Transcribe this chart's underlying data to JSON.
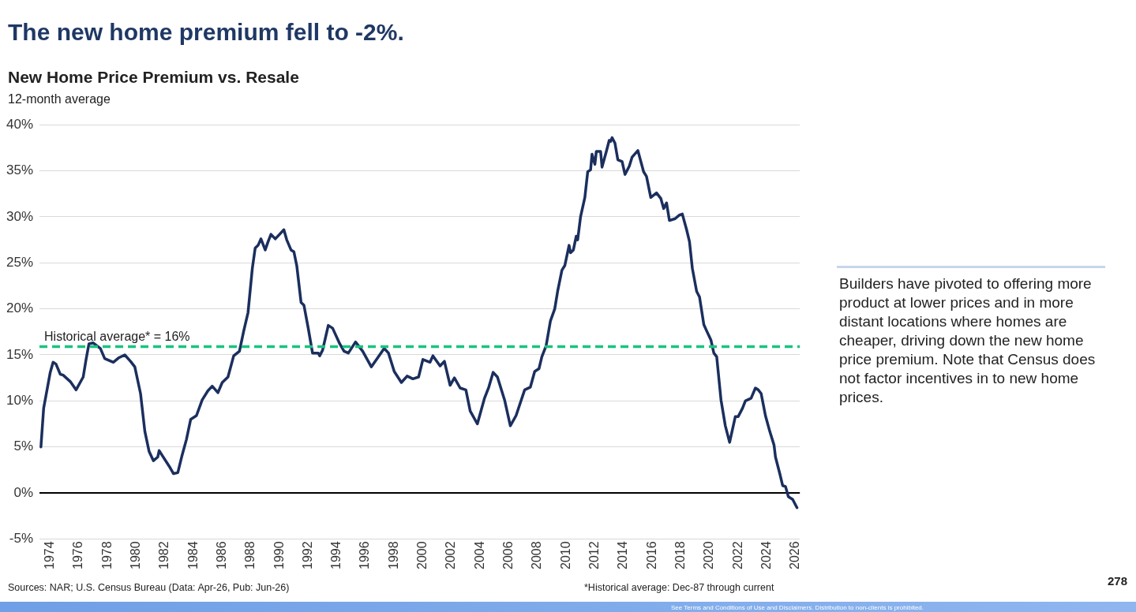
{
  "chart_data": {
    "type": "line",
    "title": "New Home Price Premium vs. Resale",
    "subtitle": "12-month average",
    "annotations": [
      "The new home premium fell to -2%.",
      "Builders have pivoted to offering more product at lower prices and in more distant locations where homes are cheaper, driving down the new home price premium. Note that Census does not factor incentives in to new home prices.",
      "Sources: NAR; U.S. Census Bureau (Data: Apr-26, Pub: Jun-26)",
      "*Historical average: Dec-87 through current",
      "See Terms and Conditions of Use and Disclaimers. Distribution to non-clients is prohibited.",
      "278"
    ],
    "series": [
      {
        "color": "#1b2f5e",
        "x": [
          1973.35,
          1973.54,
          1974.0,
          1974.2,
          1974.4,
          1974.7,
          1974.9,
          1975.4,
          1975.8,
          1976.3,
          1976.5,
          1976.7,
          1977.0,
          1977.5,
          1977.8,
          1978.4,
          1978.8,
          1979.2,
          1979.6,
          1979.9,
          1980.3,
          1980.6,
          1980.9,
          1981.2,
          1981.5,
          1981.6,
          1981.8,
          1982.3,
          1982.6,
          1982.9,
          1983.2,
          1983.5,
          1983.8,
          1984.2,
          1984.6,
          1985.0,
          1985.3,
          1985.7,
          1986.0,
          1986.4,
          1986.8,
          1987.2,
          1987.5,
          1987.8,
          1988.1,
          1988.3,
          1988.5,
          1988.7,
          1989.0,
          1989.2,
          1989.4,
          1989.7,
          1990.0,
          1990.3,
          1990.5,
          1990.8,
          1991.0,
          1991.2,
          1991.5,
          1991.7,
          1992.0,
          1992.3,
          1992.7,
          1992.8,
          1993.0,
          1993.4,
          1993.7,
          1994.2,
          1994.5,
          1994.8,
          1995.3,
          1995.8,
          1996.4,
          1996.9,
          1997.3,
          1997.6,
          1998.0,
          1998.5,
          1998.9,
          1999.3,
          1999.7,
          2000.0,
          2000.5,
          2000.7,
          2001.2,
          2001.5,
          2001.9,
          2002.2,
          2002.6,
          2003.0,
          2003.3,
          2003.8,
          2004.3,
          2004.6,
          2004.9,
          2005.2,
          2005.7,
          2006.0,
          2006.1,
          2006.5,
          2007.1,
          2007.5,
          2007.8,
          2008.1,
          2008.3,
          2008.6,
          2008.9,
          2009.2,
          2009.4,
          2009.7,
          2009.9,
          2010.2,
          2010.3,
          2010.5,
          2010.7,
          2010.8,
          2011.0,
          2011.3,
          2011.5,
          2011.7,
          2011.8,
          2012.0,
          2012.1,
          2012.4,
          2012.5,
          2012.8,
          2013.0,
          2013.1,
          2013.2,
          2013.4,
          2013.6,
          2013.9,
          2014.1,
          2014.4,
          2014.6,
          2015.0,
          2015.4,
          2015.6,
          2015.9,
          2016.3,
          2016.6,
          2016.8,
          2017.0,
          2017.2,
          2017.6,
          2017.9,
          2018.1,
          2018.4,
          2018.6,
          2018.8,
          2019.1,
          2019.3,
          2019.6,
          2019.8,
          2020.1,
          2020.3,
          2020.5,
          2020.8,
          2021.1,
          2021.4,
          2021.8,
          2022.0,
          2022.3,
          2022.5,
          2022.9,
          2023.2,
          2023.4,
          2023.6,
          2023.9,
          2024.2,
          2024.5,
          2024.6,
          2024.9,
          2025.1,
          2025.3,
          2025.5,
          2025.8,
          2026.1
        ],
        "values": [
          5.0,
          9.2,
          13.1,
          14.2,
          14.0,
          12.9,
          12.8,
          12.1,
          11.2,
          12.6,
          14.5,
          16.2,
          16.3,
          15.7,
          14.6,
          14.2,
          14.7,
          15.0,
          14.3,
          13.7,
          10.8,
          6.7,
          4.5,
          3.5,
          3.9,
          4.6,
          4.1,
          2.9,
          2.1,
          2.2,
          4.1,
          5.8,
          8.0,
          8.4,
          10.1,
          11.1,
          11.6,
          10.9,
          12.0,
          12.6,
          14.9,
          15.4,
          17.6,
          19.6,
          24.4,
          26.6,
          26.9,
          27.6,
          26.4,
          27.3,
          28.1,
          27.6,
          28.1,
          28.6,
          27.5,
          26.4,
          26.2,
          24.7,
          20.7,
          20.4,
          17.9,
          15.2,
          15.2,
          14.9,
          15.5,
          18.2,
          17.9,
          16.2,
          15.4,
          15.2,
          16.4,
          15.4,
          13.7,
          14.8,
          15.7,
          15.2,
          13.2,
          12.0,
          12.7,
          12.4,
          12.6,
          14.5,
          14.2,
          14.9,
          13.8,
          14.3,
          11.7,
          12.5,
          11.4,
          11.2,
          8.9,
          7.5,
          10.3,
          11.5,
          13.1,
          12.6,
          10.1,
          8.0,
          7.3,
          8.4,
          11.2,
          11.5,
          13.2,
          13.5,
          14.8,
          16.0,
          18.7,
          20.0,
          21.9,
          24.2,
          24.7,
          26.9,
          26.1,
          26.4,
          27.9,
          27.5,
          30.0,
          32.1,
          34.9,
          35.1,
          36.8,
          35.7,
          37.1,
          37.1,
          35.4,
          37.1,
          38.3,
          38.2,
          38.6,
          38.0,
          36.2,
          36.0,
          34.6,
          35.5,
          36.5,
          37.2,
          34.9,
          34.4,
          32.1,
          32.6,
          32.0,
          30.9,
          31.5,
          29.6,
          29.8,
          30.2,
          30.3,
          28.6,
          27.3,
          24.4,
          21.9,
          21.3,
          18.3,
          17.6,
          16.6,
          15.2,
          14.8,
          10.1,
          7.3,
          5.5,
          8.3,
          8.3,
          9.2,
          10.0,
          10.3,
          11.4,
          11.2,
          10.8,
          8.4,
          6.7,
          5.2,
          3.9,
          2.1,
          0.8,
          0.7,
          -0.4,
          -0.7,
          -1.6
        ]
      }
    ],
    "xlim": [
      1973.25,
      2026.3
    ],
    "xticks": [
      1974,
      1976,
      1978,
      1980,
      1982,
      1984,
      1986,
      1988,
      1990,
      1992,
      1994,
      1996,
      1998,
      2000,
      2002,
      2004,
      2006,
      2008,
      2010,
      2012,
      2014,
      2016,
      2018,
      2020,
      2022,
      2024,
      2026
    ],
    "ylim": [
      -5,
      40
    ],
    "yticks": [
      {
        "value": -5,
        "label": "-5%"
      },
      {
        "value": 0,
        "label": "0%"
      },
      {
        "value": 5,
        "label": "5%"
      },
      {
        "value": 10,
        "label": "10%"
      },
      {
        "value": 15,
        "label": "15%"
      },
      {
        "value": 20,
        "label": "20%"
      },
      {
        "value": 25,
        "label": "25%"
      },
      {
        "value": 30,
        "label": "30%"
      },
      {
        "value": 35,
        "label": "35%"
      },
      {
        "value": 40,
        "label": "40%"
      }
    ],
    "ref_lines": [
      {
        "axis": "y",
        "value": 15.9,
        "label": "Historical average* = 16%",
        "color": "#18c47e",
        "line_style": "dashed"
      }
    ],
    "grid": "y",
    "legend": false,
    "marker": "none",
    "line_style": "solid"
  }
}
